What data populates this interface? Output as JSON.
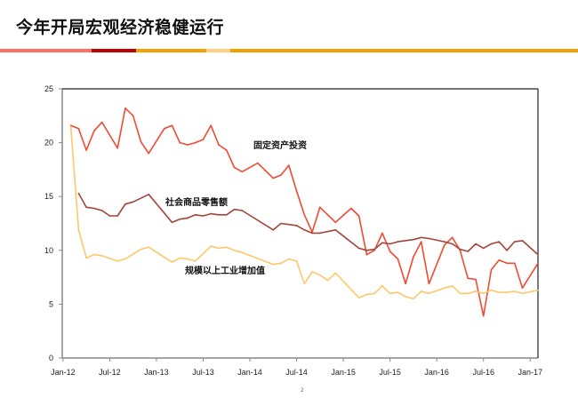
{
  "header": {
    "title": "今年开局宏观经济稳健运行",
    "stripe_colors": [
      "#ff7060",
      "#c00000",
      "#f5a000",
      "#ffd080",
      "#f5a000"
    ]
  },
  "footer": {
    "page_number": "2"
  },
  "chart_data": {
    "type": "line",
    "title": "",
    "xlabel": "",
    "ylabel": "",
    "ylim": [
      0,
      25
    ],
    "yticks": [
      "0",
      "5",
      "10",
      "15",
      "20",
      "25"
    ],
    "xlim": [
      "2012-01",
      "2017-02"
    ],
    "xticks": [
      {
        "label": "Jan-12",
        "date": "2012-01"
      },
      {
        "label": "Jul-12",
        "date": "2012-07"
      },
      {
        "label": "Jan-13",
        "date": "2013-01"
      },
      {
        "label": "Jul-13",
        "date": "2013-07"
      },
      {
        "label": "Jan-14",
        "date": "2014-01"
      },
      {
        "label": "Jul-14",
        "date": "2014-07"
      },
      {
        "label": "Jan-15",
        "date": "2015-01"
      },
      {
        "label": "Jul-15",
        "date": "2015-07"
      },
      {
        "label": "Jan-16",
        "date": "2016-01"
      },
      {
        "label": "Jul-16",
        "date": "2016-07"
      },
      {
        "label": "Jan-17",
        "date": "2017-01"
      }
    ],
    "grid": false,
    "legend": "inline labels",
    "series": [
      {
        "name": "固定资产投资",
        "color": "#f04a32",
        "points": [
          [
            "2012-02",
            21.6
          ],
          [
            "2012-03",
            21.3
          ],
          [
            "2012-04",
            19.3
          ],
          [
            "2012-05",
            21.1
          ],
          [
            "2012-06",
            21.9
          ],
          [
            "2012-07",
            20.7
          ],
          [
            "2012-08",
            19.5
          ],
          [
            "2012-09",
            23.2
          ],
          [
            "2012-10",
            22.5
          ],
          [
            "2012-11",
            20.1
          ],
          [
            "2012-12",
            19.0
          ],
          [
            "2013-02",
            21.3
          ],
          [
            "2013-03",
            21.6
          ],
          [
            "2013-04",
            20.0
          ],
          [
            "2013-05",
            19.8
          ],
          [
            "2013-06",
            20.0
          ],
          [
            "2013-07",
            20.3
          ],
          [
            "2013-08",
            21.6
          ],
          [
            "2013-09",
            19.8
          ],
          [
            "2013-10",
            19.3
          ],
          [
            "2013-11",
            17.7
          ],
          [
            "2013-12",
            17.3
          ],
          [
            "2014-02",
            18.1
          ],
          [
            "2014-03",
            17.4
          ],
          [
            "2014-04",
            16.7
          ],
          [
            "2014-05",
            17.0
          ],
          [
            "2014-06",
            17.9
          ],
          [
            "2014-07",
            15.5
          ],
          [
            "2014-08",
            13.3
          ],
          [
            "2014-09",
            11.7
          ],
          [
            "2014-10",
            14.0
          ],
          [
            "2014-11",
            13.3
          ],
          [
            "2014-12",
            12.6
          ],
          [
            "2015-02",
            13.9
          ],
          [
            "2015-03",
            13.2
          ],
          [
            "2015-04",
            9.6
          ],
          [
            "2015-05",
            10.0
          ],
          [
            "2015-06",
            11.6
          ],
          [
            "2015-07",
            9.9
          ],
          [
            "2015-08",
            9.2
          ],
          [
            "2015-09",
            6.9
          ],
          [
            "2015-10",
            9.4
          ],
          [
            "2015-11",
            10.8
          ],
          [
            "2015-12",
            6.9
          ],
          [
            "2016-02",
            10.5
          ],
          [
            "2016-03",
            11.2
          ],
          [
            "2016-04",
            10.0
          ],
          [
            "2016-05",
            7.4
          ],
          [
            "2016-06",
            7.3
          ],
          [
            "2016-07",
            3.9
          ],
          [
            "2016-08",
            8.2
          ],
          [
            "2016-09",
            9.1
          ],
          [
            "2016-10",
            8.8
          ],
          [
            "2016-11",
            8.8
          ],
          [
            "2016-12",
            6.5
          ],
          [
            "2017-02",
            8.8
          ]
        ]
      },
      {
        "name": "社会商品零售额",
        "color": "#a3453a",
        "points": [
          [
            "2012-03",
            15.3
          ],
          [
            "2012-04",
            14.0
          ],
          [
            "2012-05",
            13.9
          ],
          [
            "2012-06",
            13.7
          ],
          [
            "2012-07",
            13.2
          ],
          [
            "2012-08",
            13.2
          ],
          [
            "2012-09",
            14.3
          ],
          [
            "2012-10",
            14.5
          ],
          [
            "2012-12",
            15.2
          ],
          [
            "2013-03",
            12.6
          ],
          [
            "2013-04",
            12.9
          ],
          [
            "2013-05",
            13.0
          ],
          [
            "2013-06",
            13.3
          ],
          [
            "2013-07",
            13.2
          ],
          [
            "2013-08",
            13.4
          ],
          [
            "2013-09",
            13.3
          ],
          [
            "2013-10",
            13.3
          ],
          [
            "2013-11",
            13.8
          ],
          [
            "2013-12",
            13.7
          ],
          [
            "2014-04",
            11.9
          ],
          [
            "2014-05",
            12.5
          ],
          [
            "2014-06",
            12.4
          ],
          [
            "2014-07",
            12.3
          ],
          [
            "2014-08",
            11.9
          ],
          [
            "2014-09",
            11.6
          ],
          [
            "2014-10",
            11.6
          ],
          [
            "2014-12",
            11.9
          ],
          [
            "2015-03",
            10.2
          ],
          [
            "2015-04",
            10.0
          ],
          [
            "2015-05",
            10.1
          ],
          [
            "2015-06",
            10.7
          ],
          [
            "2015-07",
            10.6
          ],
          [
            "2015-08",
            10.8
          ],
          [
            "2015-10",
            11.0
          ],
          [
            "2015-11",
            11.2
          ],
          [
            "2015-12",
            11.1
          ],
          [
            "2016-02",
            10.8
          ],
          [
            "2016-03",
            10.6
          ],
          [
            "2016-04",
            10.1
          ],
          [
            "2016-05",
            9.9
          ],
          [
            "2016-06",
            10.6
          ],
          [
            "2016-07",
            10.2
          ],
          [
            "2016-08",
            10.6
          ],
          [
            "2016-09",
            10.8
          ],
          [
            "2016-10",
            10.0
          ],
          [
            "2016-11",
            10.8
          ],
          [
            "2016-12",
            10.9
          ],
          [
            "2017-02",
            9.6
          ]
        ]
      },
      {
        "name": "规模以上工业增加值",
        "color": "#ffc76a",
        "points": [
          [
            "2012-02",
            21.5
          ],
          [
            "2012-03",
            11.9
          ],
          [
            "2012-04",
            9.3
          ],
          [
            "2012-05",
            9.6
          ],
          [
            "2012-06",
            9.5
          ],
          [
            "2012-08",
            9.0
          ],
          [
            "2012-09",
            9.2
          ],
          [
            "2012-11",
            10.1
          ],
          [
            "2012-12",
            10.3
          ],
          [
            "2013-03",
            8.9
          ],
          [
            "2013-04",
            9.3
          ],
          [
            "2013-05",
            9.2
          ],
          [
            "2013-06",
            9.0
          ],
          [
            "2013-08",
            10.4
          ],
          [
            "2013-09",
            10.2
          ],
          [
            "2013-10",
            10.3
          ],
          [
            "2013-11",
            10.0
          ],
          [
            "2013-12",
            9.8
          ],
          [
            "2014-04",
            8.7
          ],
          [
            "2014-05",
            8.8
          ],
          [
            "2014-06",
            9.2
          ],
          [
            "2014-07",
            9.0
          ],
          [
            "2014-08",
            6.9
          ],
          [
            "2014-09",
            8.0
          ],
          [
            "2014-10",
            7.7
          ],
          [
            "2014-11",
            7.2
          ],
          [
            "2014-12",
            7.9
          ],
          [
            "2015-03",
            5.6
          ],
          [
            "2015-04",
            5.9
          ],
          [
            "2015-05",
            6.0
          ],
          [
            "2015-06",
            6.7
          ],
          [
            "2015-07",
            6.0
          ],
          [
            "2015-08",
            6.1
          ],
          [
            "2015-09",
            5.7
          ],
          [
            "2015-10",
            5.5
          ],
          [
            "2015-11",
            6.2
          ],
          [
            "2015-12",
            6.0
          ],
          [
            "2016-02",
            6.5
          ],
          [
            "2016-03",
            6.7
          ],
          [
            "2016-04",
            6.0
          ],
          [
            "2016-05",
            6.0
          ],
          [
            "2016-06",
            6.2
          ],
          [
            "2016-07",
            6.0
          ],
          [
            "2016-08",
            6.3
          ],
          [
            "2016-09",
            6.1
          ],
          [
            "2016-10",
            6.1
          ],
          [
            "2016-11",
            6.2
          ],
          [
            "2016-12",
            6.0
          ],
          [
            "2017-02",
            6.3
          ]
        ]
      }
    ]
  }
}
